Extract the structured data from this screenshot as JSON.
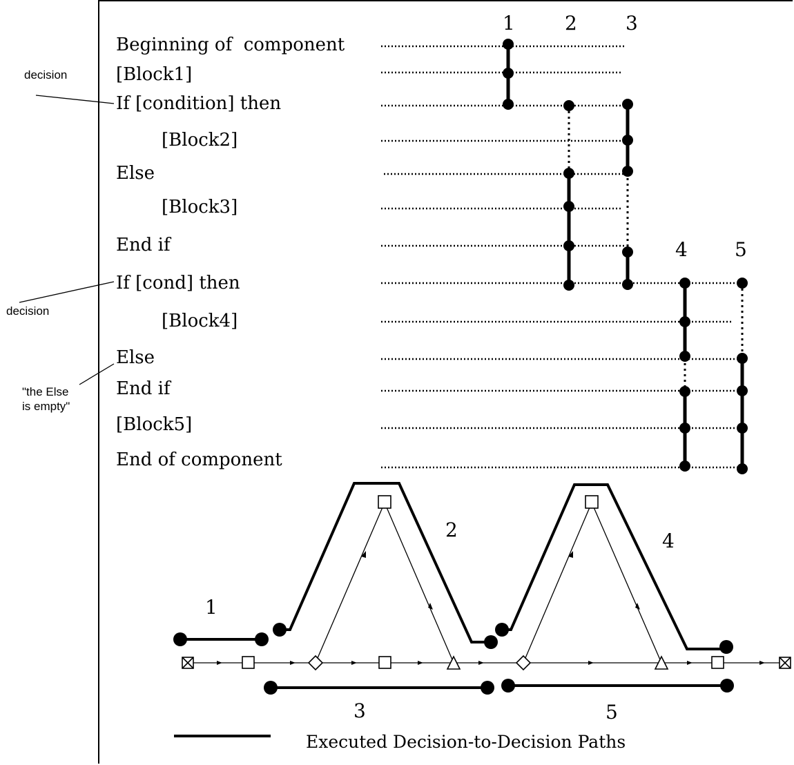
{
  "code_lines": [
    "Beginning of  component",
    "[Block1]",
    "If [condition] then",
    "[Block2]",
    "Else",
    "[Block3]",
    "End if",
    "If [cond] then",
    "[Block4]",
    "Else",
    "End if",
    "[Block5]",
    "End of component"
  ],
  "annotations": {
    "decision_1": "decision",
    "decision_2": "decision",
    "else_empty": "\"the Else\nis empty\""
  },
  "path_numbers_top": [
    "1",
    "2",
    "3",
    "4",
    "5"
  ],
  "path_numbers_bottom": [
    "1",
    "2",
    "3",
    "4",
    "5"
  ],
  "legend": {
    "label": "Executed Decision-to-Decision Paths"
  }
}
